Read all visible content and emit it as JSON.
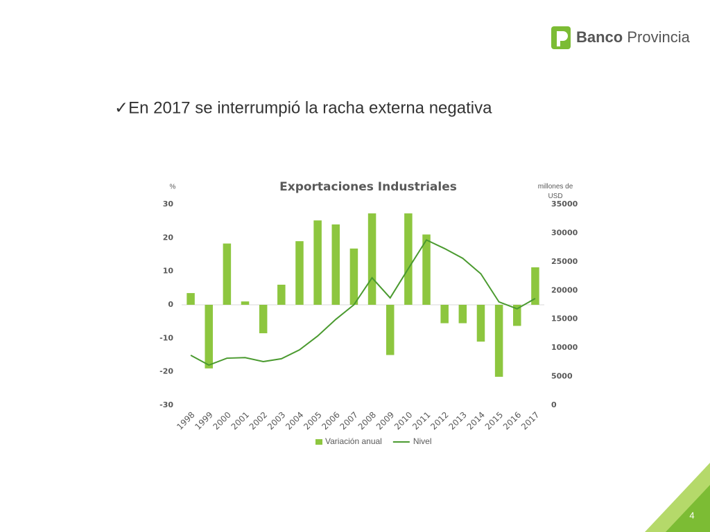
{
  "logo": {
    "name_bold": "Banco",
    "name_regular": "Provincia"
  },
  "heading": "✓En 2017 se interrumpió la racha externa negativa",
  "page_number": "4",
  "chart_data": {
    "type": "bar",
    "title": "Exportaciones Industriales",
    "y_label": "%",
    "y2_label": "millones de USD",
    "categories": [
      "1998",
      "1999",
      "2000",
      "2001",
      "2002",
      "2003",
      "2004",
      "2005",
      "2006",
      "2007",
      "2008",
      "2009",
      "2010",
      "2011",
      "2012",
      "2013",
      "2014",
      "2015",
      "2016",
      "2017"
    ],
    "series": [
      {
        "name": "Variación anual",
        "color": "#8dc63f",
        "values": [
          3.5,
          -19,
          18.3,
          1,
          -8.5,
          6,
          19,
          25.2,
          24,
          16.8,
          27.3,
          -15,
          27.3,
          21,
          -5.5,
          -5.5,
          -11,
          -21.5,
          -6.3,
          11.2
        ]
      },
      {
        "name": "Nivel",
        "type": "line",
        "axis": "y2",
        "color": "#4a9a2f",
        "values": [
          8700,
          7000,
          8200,
          8300,
          7600,
          8100,
          9650,
          12060,
          14960,
          17500,
          22200,
          18700,
          23800,
          28800,
          27300,
          25600,
          22900,
          18000,
          16800,
          18600
        ]
      }
    ],
    "ylim": [
      -30,
      30
    ],
    "yticks": [
      -30,
      -20,
      -10,
      0,
      10,
      20,
      30
    ],
    "y2lim": [
      0,
      35000
    ],
    "y2ticks": [
      0,
      5000,
      10000,
      15000,
      20000,
      25000,
      30000,
      35000
    ],
    "legend": "bottom",
    "grid": false
  }
}
